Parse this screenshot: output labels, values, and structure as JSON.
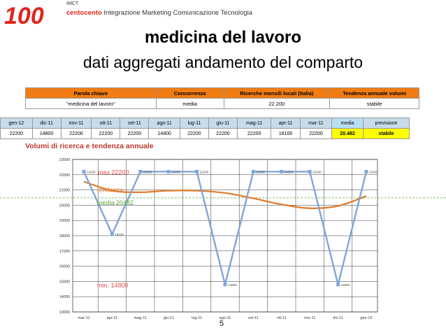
{
  "brand": {
    "imct": "IMCT",
    "logo_text": "100",
    "name": "centocento",
    "tagline": "Integrazione Marketing Comunicazione Tecnologia"
  },
  "title": "medicina del lavoro",
  "subtitle": "dati aggregati andamento del comparto",
  "summary_table": {
    "headers": [
      "Parola chiave",
      "Concorrenza",
      "Ricerche mensili locali (Italia)",
      "Tendenza annuale volumi"
    ],
    "values": [
      "\"medicina del lavoro\"",
      "media",
      "22.200",
      "stabile"
    ]
  },
  "monthly_table": {
    "headers": [
      "gen-12",
      "dic-11",
      "nov-11",
      "ott-11",
      "set-11",
      "ago-11",
      "lug-11",
      "giu-11",
      "mag-11",
      "apr-11",
      "mar-11",
      "media",
      "previsione"
    ],
    "values": [
      "22200",
      "14800",
      "22200",
      "22200",
      "22200",
      "14800",
      "22200",
      "22200",
      "22200",
      "18100",
      "22200",
      "20.482",
      "stabile"
    ]
  },
  "section_title": "Volumi di ricerca e tendenza annuale",
  "page_number": "5",
  "chart_data": {
    "type": "line",
    "categories": [
      "mar-11",
      "apr-11",
      "mag-11",
      "giu-11",
      "lug-11",
      "ago-11",
      "set-11",
      "ott-11",
      "nov-11",
      "dic-11",
      "gen-12"
    ],
    "series": [
      {
        "name": "",
        "values": [
          22200,
          18100,
          22200,
          22200,
          22200,
          14800,
          22200,
          22200,
          22200,
          14800,
          22200
        ],
        "color": "#7fa7d8"
      },
      {
        "name": "tendenza",
        "values": [
          21550,
          20950,
          20850,
          20950,
          20950,
          20800,
          20450,
          20050,
          19800,
          19950,
          20600
        ],
        "color": "#e07a28"
      }
    ],
    "data_labels": [
      "22200",
      "18100",
      "22200",
      "22200",
      "22200",
      "14800",
      "22200",
      "22200",
      "22200",
      "14800",
      "22200"
    ],
    "yticks": [
      "23000",
      "22000",
      "21000",
      "20000",
      "19000",
      "18000",
      "17000",
      "16000",
      "15000",
      "14000",
      "13000"
    ],
    "ylim": [
      13000,
      23000
    ],
    "annotations": {
      "max": "max.22200",
      "tendenza": "tendenza",
      "media": "media 20482",
      "min": "min. 14800"
    },
    "annotation_colors": {
      "max": "#e84a4a",
      "tendenza": "#e07a28",
      "media": "#5aa33b",
      "min": "#e84a4a"
    },
    "media_value": 20482,
    "grid": true,
    "legend": "none"
  }
}
